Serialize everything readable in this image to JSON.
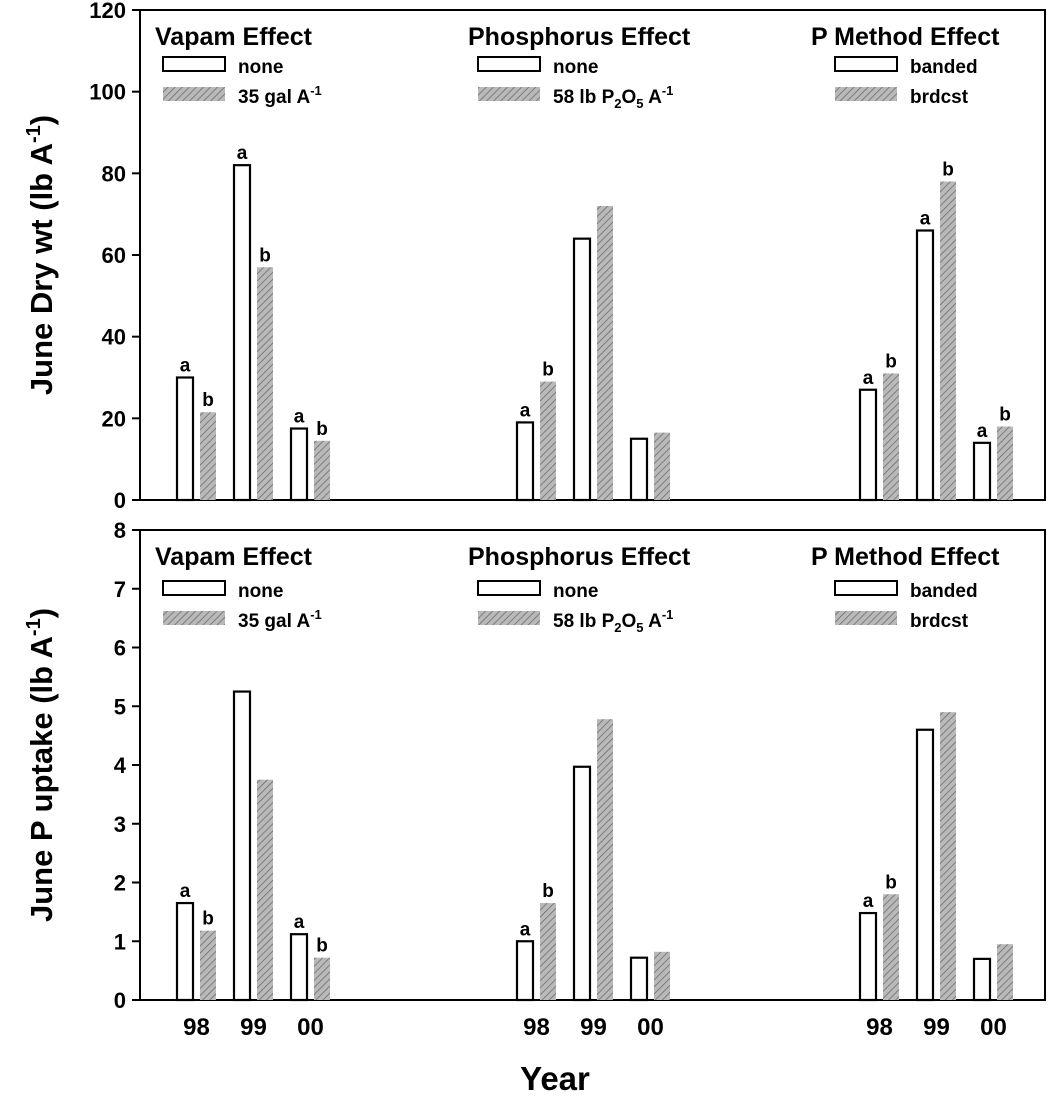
{
  "colors": {
    "open_bar_fill": "#ffffff",
    "hatched_bar_fill": "#b9b9b9",
    "hatch_line": "#6e6e6e",
    "ink": "#000000"
  },
  "shared_xlabel": "Year",
  "chart_data": [
    {
      "type": "bar",
      "ylabel": "June Dry wt (lb A-1)",
      "ylim": [
        0,
        120
      ],
      "yticks": [
        0,
        20,
        40,
        60,
        80,
        100,
        120
      ],
      "grid": false,
      "panels": [
        {
          "title": "Vapam Effect",
          "legend": [
            "none",
            "35 gal A-1"
          ],
          "categories": [
            "98",
            "99",
            "00"
          ],
          "series": [
            {
              "name": "none",
              "values": [
                30,
                82,
                17.5
              ],
              "letters": [
                "a",
                "a",
                "a"
              ]
            },
            {
              "name": "35 gal A-1",
              "values": [
                21.5,
                57,
                14.5
              ],
              "letters": [
                "b",
                "b",
                "b"
              ]
            }
          ]
        },
        {
          "title": "Phosphorus Effect",
          "legend": [
            "none",
            "58 lb P2O5 A-1"
          ],
          "categories": [
            "98",
            "99",
            "00"
          ],
          "series": [
            {
              "name": "none",
              "values": [
                19,
                64,
                15
              ],
              "letters": [
                "a",
                "",
                ""
              ]
            },
            {
              "name": "58 lb P2O5 A-1",
              "values": [
                29,
                72,
                16.5
              ],
              "letters": [
                "b",
                "",
                ""
              ]
            }
          ]
        },
        {
          "title": "P Method Effect",
          "legend": [
            "banded",
            "brdcst"
          ],
          "categories": [
            "98",
            "99",
            "00"
          ],
          "series": [
            {
              "name": "banded",
              "values": [
                27,
                66,
                14
              ],
              "letters": [
                "a",
                "a",
                "a"
              ]
            },
            {
              "name": "brdcst",
              "values": [
                31,
                78,
                18
              ],
              "letters": [
                "b",
                "b",
                "b"
              ]
            }
          ]
        }
      ]
    },
    {
      "type": "bar",
      "ylabel": "June P uptake (lb A-1)",
      "ylim": [
        0,
        8
      ],
      "yticks": [
        0,
        1,
        2,
        3,
        4,
        5,
        6,
        7,
        8
      ],
      "grid": false,
      "panels": [
        {
          "title": "Vapam Effect",
          "legend": [
            "none",
            "35 gal A-1"
          ],
          "categories": [
            "98",
            "99",
            "00"
          ],
          "series": [
            {
              "name": "none",
              "values": [
                1.65,
                5.25,
                1.12
              ],
              "letters": [
                "a",
                "",
                "a"
              ]
            },
            {
              "name": "35 gal A-1",
              "values": [
                1.18,
                3.75,
                0.72
              ],
              "letters": [
                "b",
                "",
                "b"
              ]
            }
          ]
        },
        {
          "title": "Phosphorus Effect",
          "legend": [
            "none",
            "58 lb P2O5 A-1"
          ],
          "categories": [
            "98",
            "99",
            "00"
          ],
          "series": [
            {
              "name": "none",
              "values": [
                1.0,
                3.97,
                0.72
              ],
              "letters": [
                "a",
                "",
                ""
              ]
            },
            {
              "name": "58 lb P2O5 A-1",
              "values": [
                1.65,
                4.78,
                0.82
              ],
              "letters": [
                "b",
                "",
                ""
              ]
            }
          ]
        },
        {
          "title": "P Method Effect",
          "legend": [
            "banded",
            "brdcst"
          ],
          "categories": [
            "98",
            "99",
            "00"
          ],
          "series": [
            {
              "name": "banded",
              "values": [
                1.48,
                4.6,
                0.7
              ],
              "letters": [
                "a",
                "",
                ""
              ]
            },
            {
              "name": "brdcst",
              "values": [
                1.8,
                4.9,
                0.95
              ],
              "letters": [
                "b",
                "",
                ""
              ]
            }
          ]
        }
      ]
    }
  ]
}
